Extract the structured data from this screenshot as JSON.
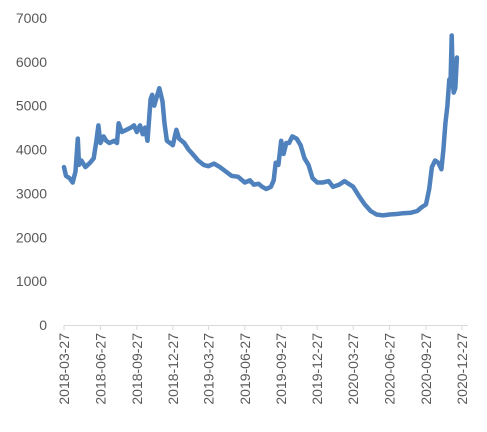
{
  "chart_data": {
    "type": "line",
    "title": "",
    "xlabel": "",
    "ylabel": "",
    "ylim": [
      0,
      7000
    ],
    "yticks": [
      0,
      1000,
      2000,
      3000,
      4000,
      5000,
      6000,
      7000
    ],
    "xticks": [
      "2018-03-27",
      "2018-06-27",
      "2018-09-27",
      "2018-12-27",
      "2019-03-27",
      "2019-06-27",
      "2019-09-27",
      "2019-12-27",
      "2020-03-27",
      "2020-06-27",
      "2020-09-27",
      "2020-12-27"
    ],
    "grid": false,
    "legend": "none",
    "line_color": "#4f81bd",
    "series": [
      {
        "values": [
          [
            "2018-03-27",
            3600
          ],
          [
            "2018-04-01",
            3400
          ],
          [
            "2018-04-10",
            3350
          ],
          [
            "2018-04-18",
            3250
          ],
          [
            "2018-04-25",
            3500
          ],
          [
            "2018-05-01",
            4250
          ],
          [
            "2018-05-04",
            3650
          ],
          [
            "2018-05-10",
            3750
          ],
          [
            "2018-05-20",
            3600
          ],
          [
            "2018-06-01",
            3700
          ],
          [
            "2018-06-10",
            3800
          ],
          [
            "2018-06-17",
            4200
          ],
          [
            "2018-06-22",
            4550
          ],
          [
            "2018-06-27",
            4150
          ],
          [
            "2018-07-05",
            4300
          ],
          [
            "2018-07-12",
            4200
          ],
          [
            "2018-07-20",
            4150
          ],
          [
            "2018-08-01",
            4200
          ],
          [
            "2018-08-08",
            4150
          ],
          [
            "2018-08-12",
            4600
          ],
          [
            "2018-08-20",
            4400
          ],
          [
            "2018-09-01",
            4450
          ],
          [
            "2018-09-12",
            4500
          ],
          [
            "2018-09-20",
            4550
          ],
          [
            "2018-09-27",
            4400
          ],
          [
            "2018-10-05",
            4550
          ],
          [
            "2018-10-12",
            4350
          ],
          [
            "2018-10-18",
            4500
          ],
          [
            "2018-10-24",
            4200
          ],
          [
            "2018-11-01",
            5150
          ],
          [
            "2018-11-05",
            5250
          ],
          [
            "2018-11-10",
            5000
          ],
          [
            "2018-11-18",
            5250
          ],
          [
            "2018-11-23",
            5400
          ],
          [
            "2018-12-01",
            5100
          ],
          [
            "2018-12-06",
            4600
          ],
          [
            "2018-12-12",
            4200
          ],
          [
            "2018-12-20",
            4150
          ],
          [
            "2018-12-27",
            4100
          ],
          [
            "2019-01-05",
            4450
          ],
          [
            "2019-01-12",
            4250
          ],
          [
            "2019-01-25",
            4150
          ],
          [
            "2019-02-05",
            4000
          ],
          [
            "2019-02-15",
            3900
          ],
          [
            "2019-03-01",
            3750
          ],
          [
            "2019-03-15",
            3650
          ],
          [
            "2019-03-27",
            3620
          ],
          [
            "2019-04-10",
            3680
          ],
          [
            "2019-04-25",
            3600
          ],
          [
            "2019-05-10",
            3500
          ],
          [
            "2019-05-25",
            3400
          ],
          [
            "2019-06-10",
            3380
          ],
          [
            "2019-06-27",
            3250
          ],
          [
            "2019-07-10",
            3300
          ],
          [
            "2019-07-20",
            3200
          ],
          [
            "2019-08-01",
            3220
          ],
          [
            "2019-08-10",
            3150
          ],
          [
            "2019-08-20",
            3100
          ],
          [
            "2019-09-01",
            3150
          ],
          [
            "2019-09-08",
            3300
          ],
          [
            "2019-09-13",
            3700
          ],
          [
            "2019-09-20",
            3650
          ],
          [
            "2019-09-27",
            4200
          ],
          [
            "2019-10-03",
            3900
          ],
          [
            "2019-10-10",
            4150
          ],
          [
            "2019-10-17",
            4150
          ],
          [
            "2019-10-25",
            4300
          ],
          [
            "2019-11-05",
            4250
          ],
          [
            "2019-11-15",
            4100
          ],
          [
            "2019-11-25",
            3800
          ],
          [
            "2019-12-05",
            3650
          ],
          [
            "2019-12-15",
            3350
          ],
          [
            "2019-12-27",
            3250
          ],
          [
            "2020-01-10",
            3250
          ],
          [
            "2020-01-25",
            3280
          ],
          [
            "2020-02-05",
            3150
          ],
          [
            "2020-02-20",
            3200
          ],
          [
            "2020-03-05",
            3280
          ],
          [
            "2020-03-27",
            3150
          ],
          [
            "2020-04-10",
            2950
          ],
          [
            "2020-04-25",
            2750
          ],
          [
            "2020-05-10",
            2600
          ],
          [
            "2020-05-25",
            2520
          ],
          [
            "2020-06-10",
            2500
          ],
          [
            "2020-06-27",
            2520
          ],
          [
            "2020-07-15",
            2530
          ],
          [
            "2020-08-01",
            2550
          ],
          [
            "2020-08-20",
            2560
          ],
          [
            "2020-09-05",
            2600
          ],
          [
            "2020-09-15",
            2680
          ],
          [
            "2020-09-27",
            2750
          ],
          [
            "2020-10-05",
            3100
          ],
          [
            "2020-10-12",
            3600
          ],
          [
            "2020-10-20",
            3750
          ],
          [
            "2020-10-28",
            3700
          ],
          [
            "2020-11-05",
            3550
          ],
          [
            "2020-11-10",
            4000
          ],
          [
            "2020-11-15",
            4600
          ],
          [
            "2020-11-20",
            5000
          ],
          [
            "2020-11-25",
            5600
          ],
          [
            "2020-11-28",
            5500
          ],
          [
            "2020-12-01",
            6600
          ],
          [
            "2020-12-04",
            5500
          ],
          [
            "2020-12-06",
            5300
          ],
          [
            "2020-12-10",
            5400
          ],
          [
            "2020-12-14",
            6100
          ]
        ]
      }
    ]
  }
}
